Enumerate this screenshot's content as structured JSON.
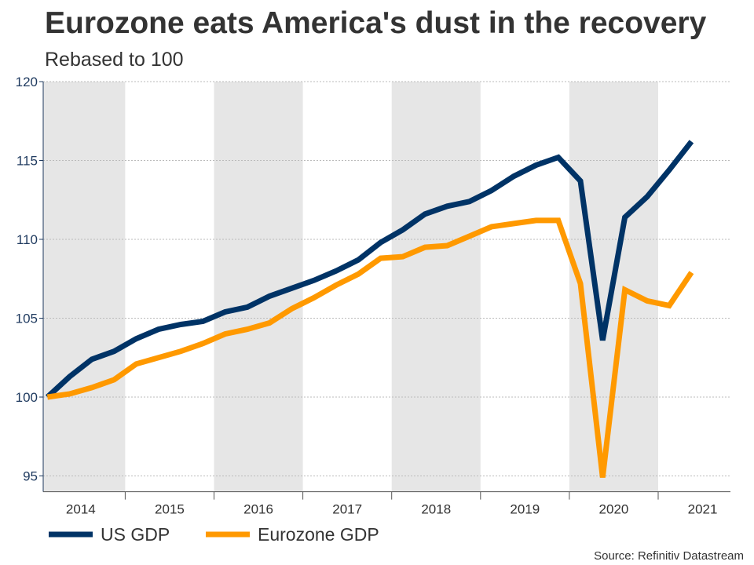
{
  "chart_data": {
    "type": "line",
    "title": "Eurozone eats America's dust in the recovery",
    "subtitle": "Rebased to 100",
    "source": "Source: Refinitiv Datastream",
    "xlabel": "",
    "ylabel": "",
    "ylim": [
      94,
      120
    ],
    "yticks": [
      95,
      100,
      105,
      110,
      115,
      120
    ],
    "year_labels": [
      "2014",
      "2015",
      "2016",
      "2017",
      "2018",
      "2019",
      "2020",
      "2021"
    ],
    "x": [
      "2014Q1",
      "2014Q2",
      "2014Q3",
      "2014Q4",
      "2015Q1",
      "2015Q2",
      "2015Q3",
      "2015Q4",
      "2016Q1",
      "2016Q2",
      "2016Q3",
      "2016Q4",
      "2017Q1",
      "2017Q2",
      "2017Q3",
      "2017Q4",
      "2018Q1",
      "2018Q2",
      "2018Q3",
      "2018Q4",
      "2019Q1",
      "2019Q2",
      "2019Q3",
      "2019Q4",
      "2020Q1",
      "2020Q2",
      "2020Q3",
      "2020Q4",
      "2021Q1",
      "2021Q2"
    ],
    "grid": true,
    "shaded_years": [
      "2014",
      "2016",
      "2018",
      "2020"
    ],
    "legend_placement": "bottom-left",
    "series": [
      {
        "name": "US GDP",
        "color": "#003366",
        "values": [
          100,
          101.3,
          102.4,
          102.9,
          103.7,
          104.3,
          104.6,
          104.8,
          105.4,
          105.7,
          106.4,
          106.9,
          107.4,
          108.0,
          108.7,
          109.8,
          110.6,
          111.6,
          112.1,
          112.4,
          113.1,
          114.0,
          114.7,
          115.2,
          113.7,
          103.6,
          111.4,
          112.7,
          114.4,
          116.2
        ]
      },
      {
        "name": "Eurozone GDP",
        "color": "#FF9900",
        "values": [
          100,
          100.2,
          100.6,
          101.1,
          102.1,
          102.5,
          102.9,
          103.4,
          104.0,
          104.3,
          104.7,
          105.6,
          106.3,
          107.1,
          107.8,
          108.8,
          108.9,
          109.5,
          109.6,
          110.2,
          110.8,
          111.0,
          111.2,
          111.2,
          107.2,
          94.9,
          106.8,
          106.1,
          105.8,
          107.9
        ]
      }
    ]
  }
}
